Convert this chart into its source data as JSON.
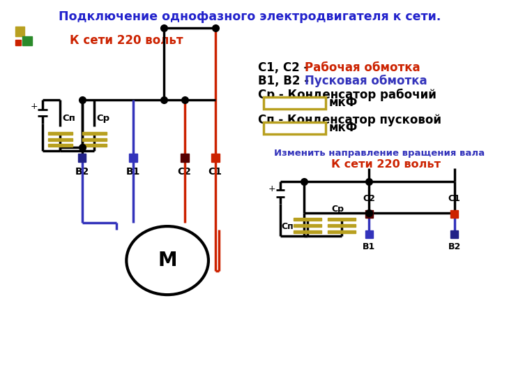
{
  "title": "Подключение однофазного электродвигателя к сети.",
  "title_color": "#2222cc",
  "red": "#cc2200",
  "blue": "#3333bb",
  "dark_blue": "#222288",
  "black": "#000000",
  "olive": "#b8a020",
  "cap_box_color": "#b8a020",
  "label_220_top": "К сети 220 вольт",
  "label_220_bot": "К сети 220 вольт",
  "label_c1c2_black": "С1, С2 - ",
  "label_c1c2_red": "Рабочая обмотка",
  "label_b1b2_black": "В1, В2 - ",
  "label_b1b2_blue": "Пусковая обмотка",
  "label_cr": "Ср - Конденсатор рабочий",
  "label_mkf": "мкФ",
  "label_cp": "Сп - Конденсатор пусковой",
  "label_change": "Изменить направление вращения вала",
  "label_M": "М"
}
